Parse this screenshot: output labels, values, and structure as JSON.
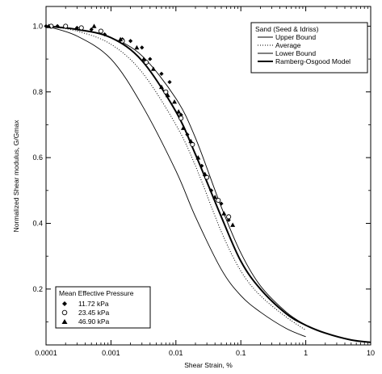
{
  "chart_data": {
    "type": "line",
    "xlabel": "Shear Strain, %",
    "ylabel": "Normalized Shear modulus, G/Gmax",
    "xscale": "log",
    "xlim": [
      0.0001,
      10
    ],
    "ylim": [
      0.03,
      1.06
    ],
    "xticks": [
      0.0001,
      0.001,
      0.01,
      0.1,
      1,
      10
    ],
    "xtick_labels": [
      "0.0001",
      "0.001",
      "0.01",
      "0.1",
      "1",
      "10"
    ],
    "yticks": [
      0.2,
      0.4,
      0.6,
      0.8,
      1.0
    ],
    "ytick_labels": [
      "0.2",
      "0.4",
      "0.6",
      "0.8",
      "1.0"
    ],
    "legend_curves": {
      "title": "Sand (Seed & Idriss)",
      "placement": "top-right",
      "entries": [
        "Upper Bound",
        "Average",
        "Lower Bound",
        "Ramberg-Osgood Model"
      ]
    },
    "legend_points": {
      "title": "Mean Effective Pressure",
      "placement": "bottom-left",
      "entries": [
        "11.72 kPa",
        "23.45 kPa",
        "46.90 kPa"
      ]
    },
    "series": [
      {
        "name": "Upper Bound",
        "style": "thin-solid",
        "x": [
          0.0001,
          0.0003,
          0.001,
          0.003,
          0.01,
          0.02,
          0.05,
          0.1,
          0.2,
          0.5,
          1
        ],
        "y": [
          1.0,
          0.99,
          0.965,
          0.91,
          0.78,
          0.66,
          0.45,
          0.31,
          0.21,
          0.13,
          0.09
        ]
      },
      {
        "name": "Average",
        "style": "dotted",
        "x": [
          0.0001,
          0.0003,
          0.001,
          0.003,
          0.01,
          0.02,
          0.05,
          0.1,
          0.2,
          0.5,
          1
        ],
        "y": [
          1.0,
          0.985,
          0.945,
          0.86,
          0.7,
          0.575,
          0.375,
          0.255,
          0.18,
          0.115,
          0.075
        ]
      },
      {
        "name": "Lower Bound",
        "style": "thin-solid",
        "x": [
          0.0001,
          0.0003,
          0.001,
          0.003,
          0.01,
          0.02,
          0.05,
          0.1,
          0.2,
          0.5,
          1
        ],
        "y": [
          1.0,
          0.97,
          0.9,
          0.76,
          0.56,
          0.42,
          0.26,
          0.18,
          0.13,
          0.08,
          0.055
        ]
      },
      {
        "name": "Ramberg-Osgood Model",
        "style": "thick-solid",
        "x": [
          0.0001,
          0.0003,
          0.001,
          0.003,
          0.01,
          0.02,
          0.05,
          0.1,
          0.2,
          0.5,
          1,
          2,
          5,
          10
        ],
        "y": [
          1.0,
          0.99,
          0.965,
          0.895,
          0.74,
          0.61,
          0.42,
          0.285,
          0.2,
          0.125,
          0.09,
          0.066,
          0.045,
          0.038
        ]
      }
    ],
    "points": [
      {
        "name": "11.72 kPa",
        "marker": "diamond",
        "x": [
          0.0001,
          0.00012,
          0.00015,
          0.0002,
          0.0003,
          0.0005,
          0.0008,
          0.0015,
          0.002,
          0.003,
          0.004,
          0.006,
          0.008,
          0.012,
          0.015,
          0.025,
          0.035,
          0.05,
          0.065
        ],
        "y": [
          1.0,
          1.0,
          1.0,
          1.0,
          0.995,
          0.99,
          0.975,
          0.96,
          0.955,
          0.935,
          0.9,
          0.855,
          0.83,
          0.73,
          0.67,
          0.575,
          0.5,
          0.46,
          0.41
        ]
      },
      {
        "name": "23.45 kPa",
        "marker": "circle",
        "x": [
          0.00012,
          0.0002,
          0.00035,
          0.0007,
          0.0015,
          0.0035,
          0.007,
          0.012,
          0.018,
          0.03,
          0.045,
          0.065
        ],
        "y": [
          1.0,
          1.0,
          0.995,
          0.985,
          0.955,
          0.89,
          0.8,
          0.72,
          0.64,
          0.54,
          0.47,
          0.42
        ]
      },
      {
        "name": "46.90 kPa",
        "marker": "triangle",
        "x": [
          0.00011,
          0.00055,
          0.0014,
          0.0025,
          0.0032,
          0.0045,
          0.006,
          0.0075,
          0.0095,
          0.011,
          0.013,
          0.017,
          0.022,
          0.028,
          0.04,
          0.055,
          0.075
        ],
        "y": [
          1.0,
          1.0,
          0.96,
          0.935,
          0.9,
          0.87,
          0.815,
          0.79,
          0.77,
          0.74,
          0.69,
          0.65,
          0.6,
          0.55,
          0.48,
          0.43,
          0.395
        ]
      }
    ]
  }
}
